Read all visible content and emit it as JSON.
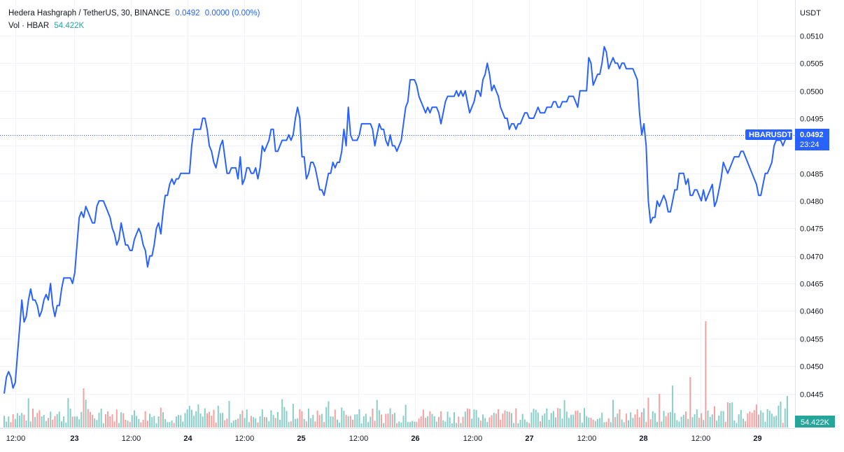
{
  "legend": {
    "title": "Hedera Hashgraph / TetherUS, 30, BINANCE",
    "price": "0.0492",
    "change": "0.0000 (0.00%)",
    "vol_label": "Vol · HBAR",
    "vol_value": "54.422K"
  },
  "colors": {
    "line": "#2962ff",
    "volume_up": "#26a69a",
    "volume_down": "#ef5350",
    "grid": "#f0f3fa",
    "price_tag": "#2962ff",
    "volume_tag": "#26a69a"
  },
  "price_tag": {
    "symbol": "HBARUSDT",
    "value": "0.0492",
    "countdown": "23:24"
  },
  "volume_tag": "54.422K",
  "chart_data": {
    "type": "line",
    "title": "Hedera Hashgraph / TetherUS, 30, BINANCE",
    "ylabel": "USDT",
    "ylim": [
      0.044,
      0.0513
    ],
    "yticks": [
      "0.0510",
      "0.0505",
      "0.0500",
      "0.0495",
      "0.0490",
      "0.0485",
      "0.0480",
      "0.0475",
      "0.0470",
      "0.0465",
      "0.0460",
      "0.0455",
      "0.0450",
      "0.0445"
    ],
    "xticks": [
      "12:00",
      "23",
      "12:00",
      "24",
      "12:00",
      "25",
      "12:00",
      "26",
      "12:00",
      "27",
      "12:00",
      "28",
      "12:00",
      "29"
    ],
    "grid": true,
    "last_price": 0.0492,
    "series": [
      {
        "values": [
          0.0445,
          0.0448,
          0.0449,
          0.0448,
          0.0446,
          0.0447,
          0.0452,
          0.0457,
          0.0462,
          0.0458,
          0.0459,
          0.0462,
          0.0464,
          0.0462,
          0.0462,
          0.0461,
          0.0459,
          0.046,
          0.0462,
          0.0463,
          0.0462,
          0.0465,
          0.0461,
          0.0459,
          0.0461,
          0.0461,
          0.0464,
          0.0466,
          0.0466,
          0.0466,
          0.0466,
          0.0465,
          0.0467,
          0.0472,
          0.0477,
          0.0478,
          0.0477,
          0.0479,
          0.0478,
          0.0477,
          0.0476,
          0.0476,
          0.0479,
          0.048,
          0.048,
          0.048,
          0.0479,
          0.0478,
          0.0477,
          0.0475,
          0.0474,
          0.0472,
          0.0473,
          0.0476,
          0.0474,
          0.0472,
          0.0472,
          0.0471,
          0.0471,
          0.0473,
          0.0474,
          0.0475,
          0.0474,
          0.0472,
          0.0471,
          0.0468,
          0.047,
          0.047,
          0.0472,
          0.0475,
          0.0476,
          0.0474,
          0.0478,
          0.0481,
          0.0481,
          0.0483,
          0.0484,
          0.0483,
          0.0484,
          0.0484,
          0.0485,
          0.0485,
          0.0485,
          0.0485,
          0.0485,
          0.049,
          0.0493,
          0.0493,
          0.0493,
          0.0493,
          0.0495,
          0.0495,
          0.0493,
          0.049,
          0.0489,
          0.0487,
          0.0486,
          0.0488,
          0.049,
          0.0491,
          0.0488,
          0.0485,
          0.0485,
          0.0486,
          0.0486,
          0.0486,
          0.0484,
          0.0488,
          0.0483,
          0.0484,
          0.0486,
          0.0486,
          0.0485,
          0.0485,
          0.0486,
          0.0484,
          0.0486,
          0.049,
          0.0489,
          0.049,
          0.0491,
          0.0493,
          0.0493,
          0.0489,
          0.0489,
          0.049,
          0.0491,
          0.0491,
          0.0491,
          0.0492,
          0.0491,
          0.0492,
          0.0495,
          0.0497,
          0.0495,
          0.0488,
          0.0488,
          0.0484,
          0.0485,
          0.0487,
          0.0487,
          0.0486,
          0.0484,
          0.0482,
          0.0482,
          0.0481,
          0.0483,
          0.0485,
          0.0485,
          0.0487,
          0.0486,
          0.0487,
          0.0487,
          0.0489,
          0.0493,
          0.049,
          0.0497,
          0.0492,
          0.0491,
          0.0491,
          0.0491,
          0.0492,
          0.0494,
          0.0494,
          0.0494,
          0.0494,
          0.0494,
          0.0493,
          0.049,
          0.0492,
          0.0494,
          0.0493,
          0.0493,
          0.0491,
          0.049,
          0.0492,
          0.049,
          0.049,
          0.0489,
          0.049,
          0.0491,
          0.0494,
          0.0497,
          0.0498,
          0.0502,
          0.0502,
          0.0502,
          0.0501,
          0.0499,
          0.0498,
          0.0497,
          0.0496,
          0.0497,
          0.0496,
          0.0497,
          0.0497,
          0.0497,
          0.0496,
          0.0494,
          0.0496,
          0.0498,
          0.0499,
          0.0499,
          0.0499,
          0.0499,
          0.05,
          0.0499,
          0.05,
          0.0499,
          0.05,
          0.0498,
          0.0496,
          0.0497,
          0.0498,
          0.05,
          0.05,
          0.0499,
          0.0502,
          0.0503,
          0.0505,
          0.0503,
          0.05,
          0.0501,
          0.05,
          0.0499,
          0.0497,
          0.0496,
          0.0495,
          0.0495,
          0.0493,
          0.0494,
          0.0494,
          0.0493,
          0.0494,
          0.0494,
          0.0495,
          0.0496,
          0.0496,
          0.0495,
          0.0495,
          0.0495,
          0.0496,
          0.0497,
          0.0496,
          0.0496,
          0.0496,
          0.0497,
          0.0497,
          0.0497,
          0.0498,
          0.0498,
          0.0497,
          0.0497,
          0.0498,
          0.0498,
          0.0498,
          0.0499,
          0.0499,
          0.0499,
          0.0498,
          0.0497,
          0.05,
          0.05,
          0.05,
          0.05,
          0.0506,
          0.0505,
          0.0501,
          0.0502,
          0.0503,
          0.0503,
          0.0505,
          0.0508,
          0.0507,
          0.0504,
          0.0505,
          0.0506,
          0.0505,
          0.0505,
          0.0504,
          0.0505,
          0.0505,
          0.0504,
          0.0504,
          0.0504,
          0.0504,
          0.0503,
          0.0502,
          0.0496,
          0.0492,
          0.0494,
          0.049,
          0.048,
          0.0476,
          0.0477,
          0.0477,
          0.048,
          0.0479,
          0.048,
          0.0481,
          0.048,
          0.0478,
          0.0478,
          0.048,
          0.0482,
          0.0482,
          0.0485,
          0.0485,
          0.0485,
          0.0483,
          0.0484,
          0.0481,
          0.0481,
          0.0482,
          0.0482,
          0.0481,
          0.048,
          0.0482,
          0.048,
          0.0481,
          0.0482,
          0.0483,
          0.0479,
          0.048,
          0.0482,
          0.0484,
          0.0487,
          0.0486,
          0.0485,
          0.0486,
          0.0487,
          0.0488,
          0.0488,
          0.0488,
          0.0489,
          0.0489,
          0.0488,
          0.0487,
          0.0486,
          0.0485,
          0.0484,
          0.0483,
          0.0481,
          0.0481,
          0.0483,
          0.0485,
          0.0485,
          0.0486,
          0.0487,
          0.049,
          0.0491,
          0.0491,
          0.0491,
          0.049,
          0.0491,
          0.0492
        ]
      }
    ]
  }
}
